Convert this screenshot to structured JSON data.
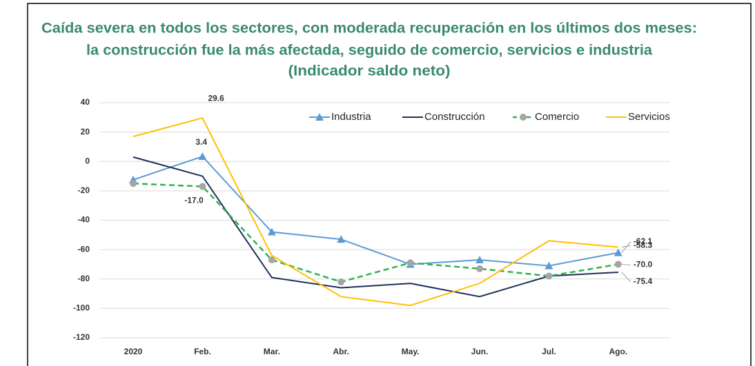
{
  "chart_data": {
    "type": "line",
    "title_lines": [
      "Caída severa en todos los sectores, con moderada recuperación en los últimos dos meses:",
      "la construcción fue la más afectada, seguido de comercio, servicios e industria",
      "(Indicador saldo neto)"
    ],
    "title_color": "#3a8a6e",
    "categories": [
      "2020",
      "Feb.",
      "Mar.",
      "Abr.",
      "May.",
      "Jun.",
      "Jul.",
      "Ago."
    ],
    "series": [
      {
        "name": "Industria",
        "color": "#5b9bd5",
        "marker": "triangle",
        "marker_color": "#5b9bd5",
        "dashed": false,
        "values": [
          -12.5,
          3.4,
          -48,
          -53,
          -70,
          -67,
          -71,
          -62.1
        ],
        "value_labels": [
          null,
          "3.4",
          null,
          null,
          null,
          null,
          null,
          "-62.1"
        ]
      },
      {
        "name": "Construcción",
        "color": "#1f2d5a",
        "marker": "none",
        "dashed": false,
        "values": [
          3,
          -10,
          -79,
          -86,
          -83,
          -92,
          -78,
          -75.4
        ],
        "value_labels": [
          null,
          null,
          null,
          null,
          null,
          null,
          null,
          "-75.4"
        ]
      },
      {
        "name": "Comercio",
        "color": "#2db34a",
        "marker": "circle",
        "marker_color": "#a5a5a5",
        "dashed": true,
        "values": [
          -15,
          -17,
          -67,
          -82,
          -69,
          -73,
          -78,
          -70
        ],
        "value_labels": [
          null,
          "-17.0",
          null,
          null,
          null,
          null,
          null,
          "-70.0"
        ]
      },
      {
        "name": "Servicios",
        "color": "#ffc000",
        "marker": "none",
        "dashed": false,
        "values": [
          17,
          29.6,
          -64,
          -92,
          -98,
          -83,
          -54,
          -58.3
        ],
        "value_labels": [
          null,
          "29.6",
          null,
          null,
          null,
          null,
          null,
          "-58.3"
        ]
      }
    ],
    "ylim": [
      -120,
      40
    ],
    "yticks": [
      -120,
      -100,
      -80,
      -60,
      -40,
      -20,
      0,
      20,
      40
    ],
    "grid": true,
    "legend": "top-right"
  }
}
